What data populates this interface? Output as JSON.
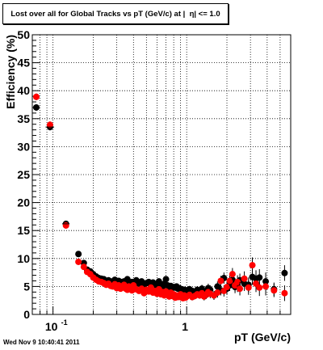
{
  "title": "Lost over all for Global Tracks vs pT (GeV/c) at |  η| <= 1.0",
  "timestamp": "Wed Nov  9 10:40:41 2011",
  "chart_data": {
    "type": "scatter",
    "title": "Lost over all for Global Tracks vs pT (GeV/c) at |  η| <= 1.0",
    "xlabel": "pT (GeV/c)",
    "ylabel": "Efficiency (%)",
    "xscale": "log",
    "xlim": [
      0.07,
      6.0
    ],
    "ylim": [
      0,
      50
    ],
    "grid": true,
    "y_ticks": [
      0,
      5,
      10,
      15,
      20,
      25,
      30,
      35,
      40,
      45,
      50
    ],
    "y_tick_labels": [
      "0",
      "5",
      "10",
      "15",
      "20",
      "25",
      "30",
      "35",
      "40",
      "45",
      "50"
    ],
    "x_major_ticks": [
      0.1,
      1
    ],
    "x_tick_labels": [
      "10",
      "1"
    ],
    "x_tick_superscripts": [
      "-1",
      ""
    ],
    "series": [
      {
        "color": "#000000",
        "x": [
          0.075,
          0.095,
          0.125,
          0.155,
          0.17,
          0.18,
          0.19,
          0.2,
          0.21,
          0.22,
          0.23,
          0.24,
          0.25,
          0.26,
          0.27,
          0.28,
          0.29,
          0.3,
          0.31,
          0.32,
          0.33,
          0.34,
          0.35,
          0.36,
          0.37,
          0.38,
          0.39,
          0.4,
          0.42,
          0.44,
          0.46,
          0.48,
          0.5,
          0.52,
          0.54,
          0.56,
          0.58,
          0.6,
          0.62,
          0.64,
          0.66,
          0.68,
          0.7,
          0.72,
          0.74,
          0.76,
          0.78,
          0.8,
          0.82,
          0.84,
          0.86,
          0.88,
          0.9,
          0.92,
          0.94,
          0.96,
          0.98,
          1.0,
          1.05,
          1.1,
          1.15,
          1.2,
          1.25,
          1.3,
          1.35,
          1.4,
          1.45,
          1.5,
          1.6,
          1.7,
          1.8,
          1.9,
          2.0,
          2.1,
          2.2,
          2.3,
          2.4,
          2.5,
          2.7,
          2.9,
          3.1,
          3.3,
          3.5,
          3.9,
          4.5,
          5.4
        ],
        "y": [
          37.0,
          33.5,
          16.2,
          10.8,
          9.2,
          8.0,
          7.7,
          7.2,
          6.8,
          6.5,
          6.4,
          6.3,
          6.0,
          6.1,
          5.9,
          5.8,
          6.2,
          5.7,
          6.0,
          5.6,
          5.8,
          5.9,
          5.5,
          6.3,
          5.7,
          5.6,
          5.8,
          5.4,
          6.1,
          5.5,
          5.9,
          5.3,
          5.6,
          5.8,
          5.2,
          5.7,
          5.4,
          5.0,
          5.9,
          5.3,
          4.9,
          5.5,
          6.3,
          5.2,
          4.8,
          5.1,
          4.7,
          4.9,
          4.8,
          5.0,
          4.6,
          4.7,
          4.4,
          4.5,
          4.2,
          4.4,
          4.1,
          4.3,
          4.5,
          4.2,
          3.9,
          4.4,
          4.1,
          4.6,
          3.8,
          4.1,
          4.7,
          4.4,
          3.4,
          5.0,
          4.3,
          6.5,
          4.6,
          5.2,
          6.2,
          4.9,
          5.2,
          6.1,
          5.5,
          5.3,
          6.7,
          6.4,
          6.6,
          5.9,
          4.5,
          7.4
        ],
        "yerr": [
          0.6,
          0.6,
          0.5,
          0.4,
          0.4,
          0.4,
          0.4,
          0.4,
          0.4,
          0.4,
          0.4,
          0.4,
          0.4,
          0.4,
          0.4,
          0.4,
          0.4,
          0.4,
          0.4,
          0.4,
          0.4,
          0.4,
          0.4,
          0.4,
          0.4,
          0.4,
          0.4,
          0.4,
          0.4,
          0.4,
          0.4,
          0.4,
          0.4,
          0.4,
          0.4,
          0.4,
          0.5,
          0.5,
          0.5,
          0.5,
          0.5,
          0.5,
          0.5,
          0.5,
          0.5,
          0.5,
          0.5,
          0.5,
          0.5,
          0.5,
          0.5,
          0.5,
          0.5,
          0.5,
          0.5,
          0.5,
          0.5,
          0.5,
          0.6,
          0.6,
          0.6,
          0.6,
          0.6,
          0.7,
          0.7,
          0.7,
          0.8,
          0.8,
          0.8,
          0.9,
          0.9,
          1.0,
          1.0,
          1.0,
          1.1,
          1.1,
          1.2,
          1.2,
          1.3,
          1.3,
          1.4,
          1.5,
          1.5,
          1.6,
          1.2,
          1.4
        ]
      },
      {
        "color": "#ff0000",
        "x": [
          0.075,
          0.095,
          0.125,
          0.155,
          0.17,
          0.18,
          0.19,
          0.2,
          0.21,
          0.22,
          0.23,
          0.24,
          0.25,
          0.26,
          0.27,
          0.28,
          0.29,
          0.3,
          0.31,
          0.32,
          0.33,
          0.34,
          0.35,
          0.36,
          0.37,
          0.38,
          0.39,
          0.4,
          0.42,
          0.44,
          0.46,
          0.48,
          0.5,
          0.52,
          0.54,
          0.56,
          0.58,
          0.6,
          0.62,
          0.64,
          0.66,
          0.68,
          0.7,
          0.72,
          0.74,
          0.76,
          0.78,
          0.8,
          0.82,
          0.84,
          0.86,
          0.88,
          0.9,
          0.92,
          0.94,
          0.96,
          0.98,
          1.0,
          1.05,
          1.1,
          1.15,
          1.2,
          1.25,
          1.3,
          1.35,
          1.4,
          1.45,
          1.5,
          1.6,
          1.7,
          1.8,
          1.9,
          2.0,
          2.1,
          2.2,
          2.3,
          2.4,
          2.5,
          2.7,
          2.9,
          3.1,
          3.3,
          3.5,
          3.9,
          4.5,
          5.4
        ],
        "y": [
          38.9,
          33.9,
          15.9,
          9.4,
          8.5,
          7.6,
          7.2,
          6.6,
          6.2,
          5.9,
          5.8,
          5.6,
          5.3,
          5.5,
          5.1,
          5.0,
          5.4,
          4.7,
          5.2,
          4.6,
          4.9,
          5.3,
          4.6,
          4.4,
          5.0,
          4.7,
          4.3,
          5.2,
          4.5,
          4.2,
          4.6,
          3.8,
          4.4,
          4.1,
          4.8,
          3.9,
          4.2,
          3.7,
          4.5,
          3.6,
          4.0,
          3.4,
          4.1,
          3.5,
          3.2,
          3.9,
          3.3,
          3.6,
          3.0,
          3.4,
          3.1,
          3.2,
          3.6,
          3.0,
          2.9,
          3.4,
          3.0,
          3.2,
          3.5,
          3.1,
          3.3,
          3.6,
          3.4,
          3.8,
          3.2,
          3.5,
          4.0,
          3.7,
          3.4,
          3.9,
          6.0,
          4.2,
          4.9,
          6.0,
          7.2,
          5.2,
          5.8,
          4.6,
          6.4,
          4.8,
          8.8,
          5.5,
          4.8,
          5.0,
          4.3,
          3.8
        ],
        "yerr": [
          0.6,
          0.6,
          0.5,
          0.4,
          0.4,
          0.4,
          0.4,
          0.4,
          0.4,
          0.4,
          0.4,
          0.4,
          0.4,
          0.4,
          0.4,
          0.4,
          0.4,
          0.4,
          0.4,
          0.4,
          0.4,
          0.4,
          0.4,
          0.4,
          0.4,
          0.4,
          0.4,
          0.4,
          0.4,
          0.4,
          0.4,
          0.4,
          0.4,
          0.4,
          0.4,
          0.4,
          0.5,
          0.5,
          0.5,
          0.5,
          0.5,
          0.5,
          0.5,
          0.5,
          0.5,
          0.5,
          0.5,
          0.5,
          0.5,
          0.5,
          0.5,
          0.5,
          0.5,
          0.5,
          0.5,
          0.5,
          0.5,
          0.5,
          0.6,
          0.6,
          0.6,
          0.6,
          0.6,
          0.7,
          0.7,
          0.7,
          0.8,
          0.8,
          0.8,
          0.9,
          0.9,
          1.0,
          1.0,
          1.0,
          1.1,
          1.1,
          1.2,
          1.2,
          1.3,
          1.3,
          1.4,
          1.5,
          1.5,
          1.6,
          1.2,
          1.4
        ]
      }
    ],
    "x_half_widths_note_free": true
  }
}
